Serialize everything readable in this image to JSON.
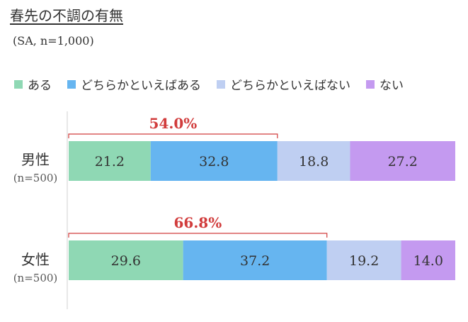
{
  "title": "春先の不調の有無",
  "subtitle": "(SA, n=1,000)",
  "chart_data": {
    "type": "bar",
    "orientation": "horizontal-stacked-100",
    "title": "春先の不調の有無",
    "subtitle": "(SA, n=1,000)",
    "legend_position": "top",
    "categories": [
      {
        "name": "男性",
        "n": "(n=500)",
        "highlight": "54.0%"
      },
      {
        "name": "女性",
        "n": "(n=500)",
        "highlight": "66.8%"
      }
    ],
    "series": [
      {
        "name": "ある",
        "color": "#8fd8b4",
        "values": [
          21.2,
          29.6
        ],
        "labels": [
          "21.2",
          "29.6"
        ]
      },
      {
        "name": "どちらかといえばある",
        "color": "#66b5f0",
        "values": [
          32.8,
          37.2
        ],
        "labels": [
          "32.8",
          "37.2"
        ]
      },
      {
        "name": "どちらかといえばない",
        "color": "#bfcff2",
        "values": [
          18.8,
          19.2
        ],
        "labels": [
          "18.8",
          "19.2"
        ]
      },
      {
        "name": "ない",
        "color": "#c49af0",
        "values": [
          27.2,
          14.0
        ],
        "labels": [
          "27.2",
          "14.0"
        ]
      }
    ],
    "xlim": [
      0,
      100
    ],
    "highlight_color": "#d13c3c"
  }
}
